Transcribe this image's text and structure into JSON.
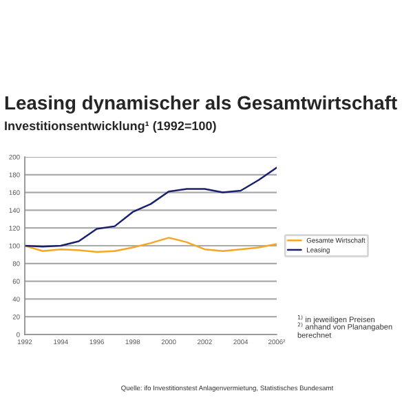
{
  "chart_data": {
    "type": "line",
    "title": "Leasing dynamischer als Gesamtwirtschaft",
    "subtitle": "Investitionsentwicklung¹ (1992=100)",
    "x": [
      1992,
      1993,
      1994,
      1995,
      1996,
      1997,
      1998,
      1999,
      2000,
      2001,
      2002,
      2003,
      2004,
      2005,
      2006
    ],
    "series": [
      {
        "name": "Gesamte Wirtschaft",
        "color": "#f5a623",
        "values": [
          100,
          94,
          96,
          95,
          93,
          94,
          98,
          103,
          109,
          104,
          96,
          94,
          96,
          98,
          102
        ]
      },
      {
        "name": "Leasing",
        "color": "#1a1f6e",
        "values": [
          100,
          99,
          100,
          105,
          119,
          122,
          138,
          147,
          161,
          164,
          164,
          160,
          162,
          174,
          188
        ]
      }
    ],
    "xlim": [
      1992,
      2006
    ],
    "xticks": [
      1992,
      1994,
      1996,
      1998,
      2000,
      2002,
      2004,
      {
        "value": 2006,
        "label": "2006²"
      }
    ],
    "ylim": [
      0,
      200
    ],
    "yticks": [
      0,
      20,
      40,
      60,
      80,
      100,
      120,
      140,
      160,
      180,
      200
    ],
    "grid": "y",
    "legend": "right",
    "marker": "none",
    "line_style": "solid",
    "annotations": [
      "$^{1)}$ in jeweiligen Preisen",
      "$^{2)}$ anhand von Planangaben berechnet",
      "Quelle: ifo Investitionstest Anlagenvermietung, Statistisches Bundesamt"
    ]
  }
}
